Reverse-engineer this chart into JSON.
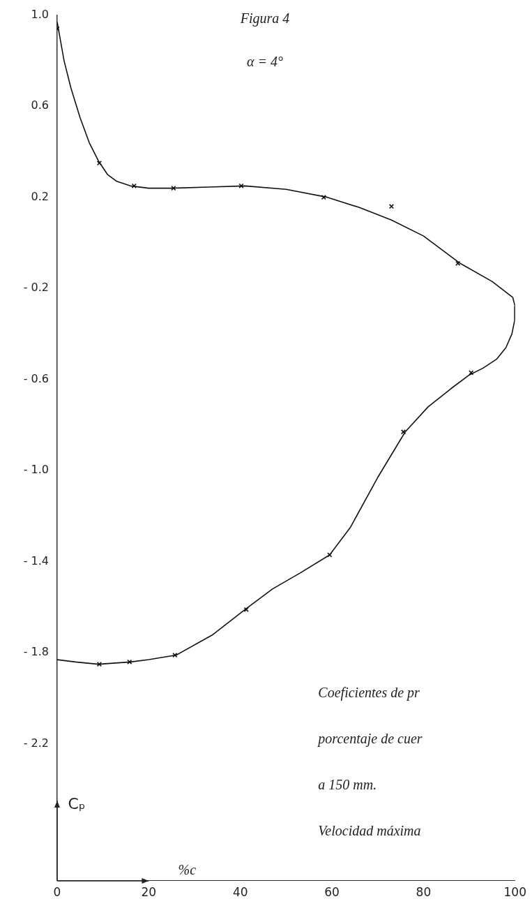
{
  "chart_data": {
    "type": "line",
    "title": "Figura 4",
    "subtitle": "α = 4°",
    "xlabel": "%c",
    "ylabel": "Cₚ",
    "xlim": [
      0,
      100
    ],
    "xticks": [
      0,
      20,
      40,
      60,
      80,
      100
    ],
    "ylim": [
      -2.8,
      1.0
    ],
    "yticks": [
      {
        "value": 1,
        "label": "1.0"
      },
      {
        "value": 0.6,
        "label": "0.6"
      },
      {
        "value": 0.2,
        "label": "0.2"
      },
      {
        "value": -0.2,
        "label": "- 0.2"
      },
      {
        "value": -0.6,
        "label": "- 0.6"
      },
      {
        "value": -1,
        "label": "- 1.0"
      },
      {
        "value": -1.4,
        "label": "- 1.4"
      },
      {
        "value": -1.8,
        "label": "- 1.8"
      },
      {
        "value": -2.2,
        "label": "- 2.2"
      }
    ],
    "series": [
      {
        "color": "#111111",
        "marker": "none",
        "x": [
          0,
          1.5,
          3,
          5,
          7,
          9,
          11,
          13,
          16,
          20,
          25,
          33,
          41,
          50,
          59,
          66,
          73,
          80,
          88,
          95,
          99.5
        ],
        "values": [
          0.97,
          0.8,
          0.68,
          0.55,
          0.44,
          0.36,
          0.3,
          0.27,
          0.25,
          0.24,
          0.24,
          0.245,
          0.25,
          0.235,
          0.2,
          0.155,
          0.1,
          0.03,
          -0.09,
          -0.17,
          -0.24
        ]
      },
      {
        "color": "#111111",
        "marker": "none",
        "x": [
          99.5,
          100,
          99.9,
          99.3,
          98,
          96,
          93,
          90,
          86,
          81,
          76,
          70,
          64,
          59.5,
          53,
          47,
          41,
          34,
          26,
          20,
          16,
          9,
          4,
          0
        ],
        "values": [
          -0.24,
          -0.28,
          -0.34,
          -0.4,
          -0.46,
          -0.51,
          -0.55,
          -0.58,
          -0.64,
          -0.72,
          -0.83,
          -1.03,
          -1.25,
          -1.37,
          -1.45,
          -1.52,
          -1.61,
          -1.72,
          -1.81,
          -1.83,
          -1.84,
          -1.85,
          -1.84,
          -1.83
        ]
      },
      {
        "type": "scatter",
        "color": "#111111",
        "x": [
          0,
          9.2,
          16.8,
          25.4,
          40.2,
          58.2,
          73,
          87.5,
          90.4,
          75.6,
          59.5,
          41.3,
          25.7,
          15.8,
          9.2
        ],
        "values": [
          0.94,
          0.35,
          0.25,
          0.24,
          0.25,
          0.2,
          0.16,
          -0.09,
          -0.57,
          -0.83,
          -1.37,
          -1.61,
          -1.81,
          -1.84,
          -1.85
        ]
      }
    ],
    "marker": "cross",
    "grid": false,
    "legend": false,
    "annotations": [
      "Coeficientes de pr",
      "porcentaje de cuer",
      "a 150 mm.",
      "Velocidad máxima"
    ]
  }
}
